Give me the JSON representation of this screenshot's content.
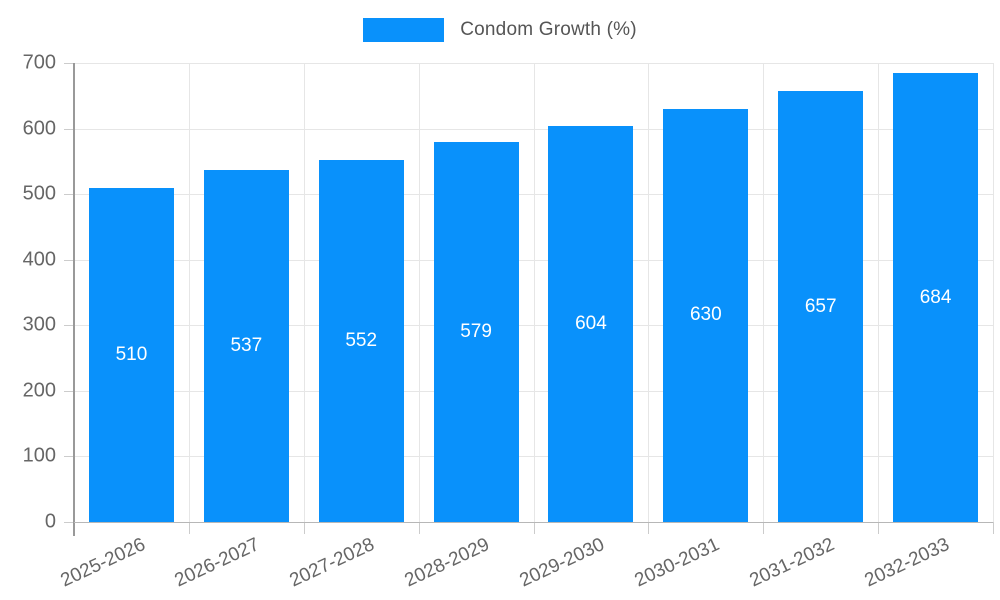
{
  "legend": {
    "label": "Condom Growth (%)",
    "swatch_color": "#0991fb"
  },
  "chart_data": {
    "type": "bar",
    "title": "Condom Growth (%)",
    "categories": [
      "2025-2026",
      "2026-2027",
      "2027-2028",
      "2028-2029",
      "2029-2030",
      "2030-2031",
      "2031-2032",
      "2032-2033"
    ],
    "values": [
      510,
      537,
      552,
      579,
      604,
      630,
      657,
      684
    ],
    "series": [
      {
        "name": "Condom Growth (%)",
        "values": [
          510,
          537,
          552,
          579,
          604,
          630,
          657,
          684
        ]
      }
    ],
    "xlabel": "",
    "ylabel": "",
    "ylim": [
      0,
      700
    ],
    "ytick_step": 100,
    "ytick_labels": [
      "0",
      "100",
      "200",
      "300",
      "400",
      "500",
      "600",
      "700"
    ],
    "grid": true,
    "legend_position": "top-center",
    "bar_color": "#0991fb",
    "value_label_color": "#ffffff",
    "value_label_position": "center-of-bar"
  },
  "colors": {
    "bar": "#0991fb",
    "gridline": "#e6e6e6",
    "y_axis_line": "#999999",
    "x_axis_line": "#b7b7b7",
    "tick": "#cccccc",
    "axis_text": "#666666",
    "legend_text": "#555555",
    "background": "#ffffff"
  }
}
